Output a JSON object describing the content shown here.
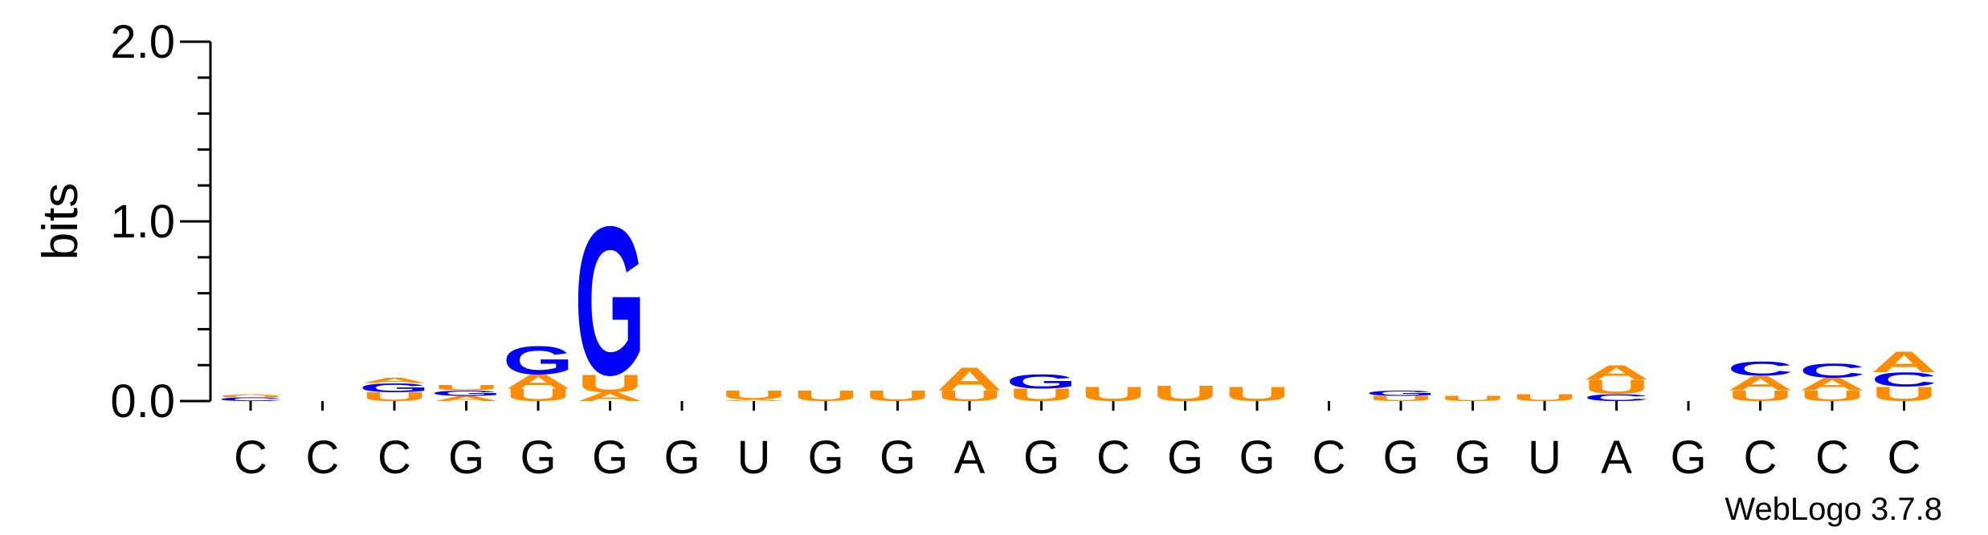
{
  "chart_data": {
    "type": "sequence-logo",
    "ylabel": "bits",
    "ylim": [
      0,
      2.0
    ],
    "yticks": [
      {
        "value": 0.0,
        "label": "0.0"
      },
      {
        "value": 1.0,
        "label": "1.0"
      },
      {
        "value": 2.0,
        "label": "2.0"
      }
    ],
    "positions": [
      "C",
      "C",
      "C",
      "G",
      "G",
      "G",
      "G",
      "U",
      "G",
      "G",
      "A",
      "G",
      "C",
      "G",
      "G",
      "C",
      "G",
      "G",
      "U",
      "A",
      "G",
      "C",
      "C",
      "C"
    ],
    "base_colors": {
      "A": "#ff8c00",
      "U": "#ff8c00",
      "G": "#0000ff",
      "C": "#0000ff"
    },
    "stacks": [
      [
        {
          "base": "C",
          "bits": 0.02
        },
        {
          "base": "U",
          "bits": 0.01
        },
        {
          "base": "A",
          "bits": 0.01
        }
      ],
      [],
      [
        {
          "base": "U",
          "bits": 0.05
        },
        {
          "base": "G",
          "bits": 0.05
        },
        {
          "base": "A",
          "bits": 0.03
        }
      ],
      [
        {
          "base": "A",
          "bits": 0.03
        },
        {
          "base": "G",
          "bits": 0.03
        },
        {
          "base": "U",
          "bits": 0.03
        }
      ],
      [
        {
          "base": "U",
          "bits": 0.07
        },
        {
          "base": "A",
          "bits": 0.08
        },
        {
          "base": "G",
          "bits": 0.16
        }
      ],
      [
        {
          "base": "A",
          "bits": 0.05
        },
        {
          "base": "U",
          "bits": 0.1
        },
        {
          "base": "G",
          "bits": 0.85
        }
      ],
      [],
      [
        {
          "base": "A",
          "bits": 0.01
        },
        {
          "base": "U",
          "bits": 0.05
        }
      ],
      [
        {
          "base": "U",
          "bits": 0.06
        }
      ],
      [
        {
          "base": "U",
          "bits": 0.06
        }
      ],
      [
        {
          "base": "U",
          "bits": 0.06
        },
        {
          "base": "A",
          "bits": 0.13
        }
      ],
      [
        {
          "base": "U",
          "bits": 0.07
        },
        {
          "base": "G",
          "bits": 0.08
        }
      ],
      [
        {
          "base": "U",
          "bits": 0.08
        }
      ],
      [
        {
          "base": "U",
          "bits": 0.09
        }
      ],
      [
        {
          "base": "U",
          "bits": 0.08
        }
      ],
      [],
      [
        {
          "base": "U",
          "bits": 0.03
        },
        {
          "base": "G",
          "bits": 0.03
        }
      ],
      [
        {
          "base": "U",
          "bits": 0.03
        }
      ],
      [
        {
          "base": "U",
          "bits": 0.04
        }
      ],
      [
        {
          "base": "C",
          "bits": 0.04
        },
        {
          "base": "U",
          "bits": 0.08
        },
        {
          "base": "A",
          "bits": 0.08
        }
      ],
      [],
      [
        {
          "base": "U",
          "bits": 0.06
        },
        {
          "base": "A",
          "bits": 0.08
        },
        {
          "base": "C",
          "bits": 0.08
        }
      ],
      [
        {
          "base": "U",
          "bits": 0.06
        },
        {
          "base": "A",
          "bits": 0.07
        },
        {
          "base": "C",
          "bits": 0.08
        }
      ],
      [
        {
          "base": "U",
          "bits": 0.08
        },
        {
          "base": "C",
          "bits": 0.08
        },
        {
          "base": "A",
          "bits": 0.12
        }
      ]
    ]
  },
  "credit": "WebLogo 3.7.8"
}
